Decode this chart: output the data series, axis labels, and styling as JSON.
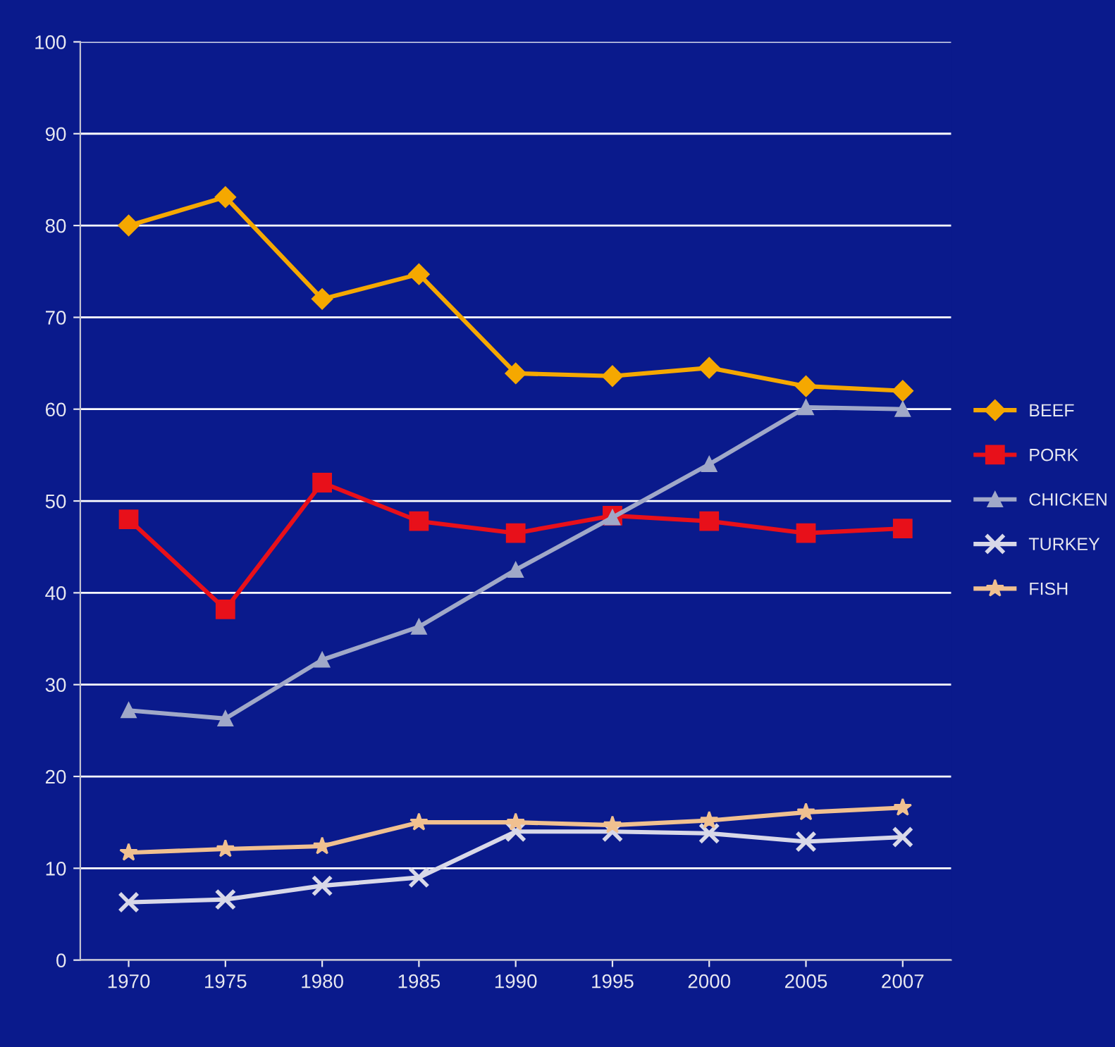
{
  "chart_data": {
    "type": "line",
    "categories": [
      "1970",
      "1975",
      "1980",
      "1985",
      "1990",
      "1995",
      "2000",
      "2005",
      "2007"
    ],
    "series": [
      {
        "name": "BEEF",
        "color": "#f5a800",
        "marker": "diamond",
        "values": [
          80,
          83.1,
          72,
          74.7,
          63.9,
          63.6,
          64.5,
          62.5,
          62
        ]
      },
      {
        "name": "PORK",
        "color": "#e8101a",
        "marker": "square",
        "values": [
          48,
          38.2,
          52,
          47.8,
          46.5,
          48.4,
          47.8,
          46.5,
          47
        ]
      },
      {
        "name": "CHICKEN",
        "color": "#a0a8c8",
        "marker": "triangle",
        "values": [
          27.2,
          26.3,
          32.7,
          36.3,
          42.5,
          48.2,
          54,
          60.2,
          60
        ]
      },
      {
        "name": "TURKEY",
        "color": "#d8d8e8",
        "marker": "cross",
        "values": [
          6.3,
          6.6,
          8.1,
          9,
          14,
          14,
          13.8,
          12.9,
          13.4
        ]
      },
      {
        "name": "FISH",
        "color": "#f0c090",
        "marker": "star",
        "values": [
          11.7,
          12.1,
          12.4,
          15,
          15,
          14.7,
          15.2,
          16.1,
          16.6
        ]
      }
    ],
    "ylim": [
      0,
      100
    ],
    "yticks": [
      0,
      10,
      20,
      30,
      40,
      50,
      60,
      70,
      80,
      90,
      100
    ],
    "grid": "y",
    "legend": "right",
    "line_style": "solid"
  }
}
